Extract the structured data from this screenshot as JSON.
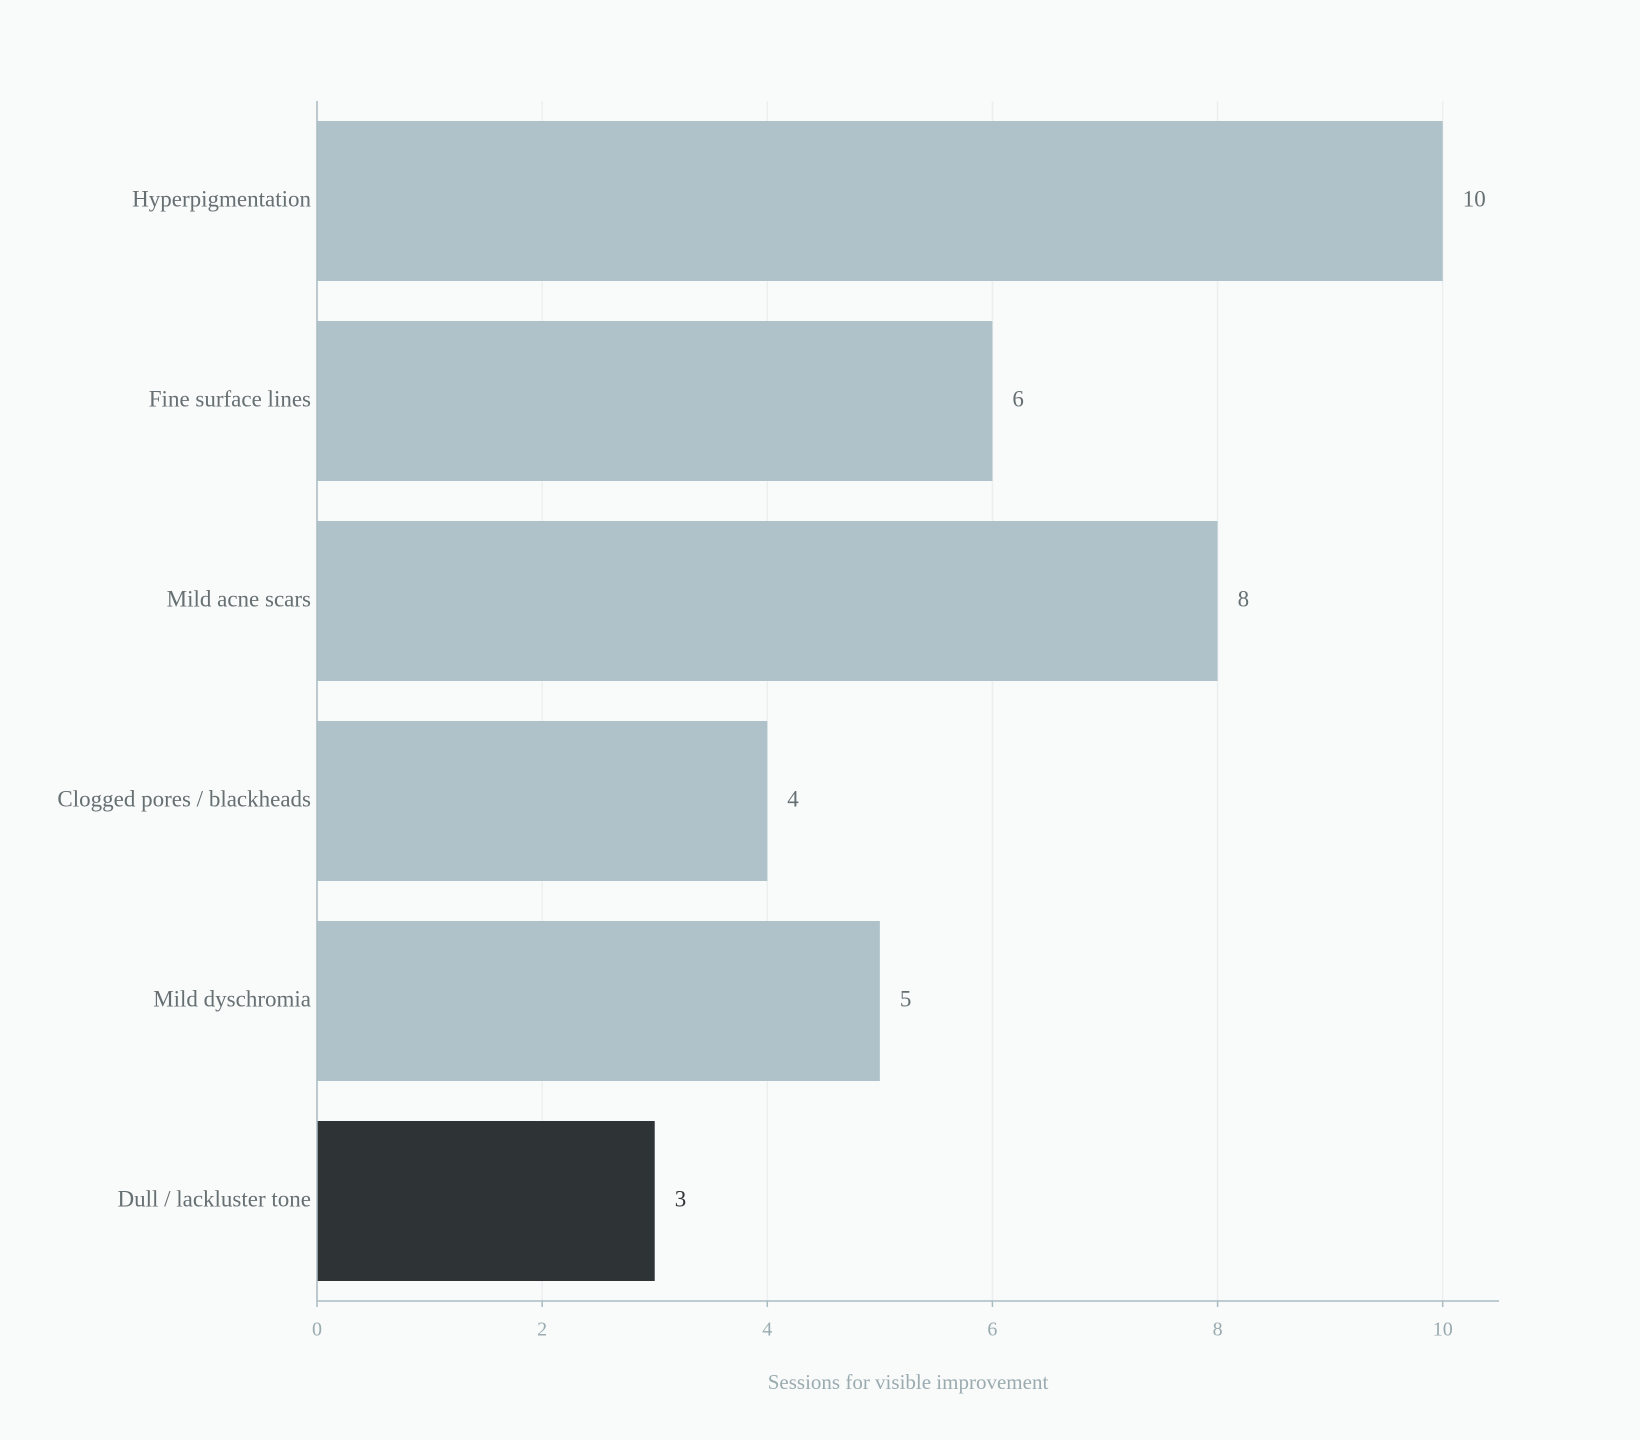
{
  "chart_data": {
    "type": "hbar",
    "x_label": "Sessions for visible improvement",
    "categories": [
      "Hyperpigmentation",
      "Fine surface lines",
      "Mild acne scars",
      "Clogged pores / blackheads",
      "Mild dyschromia",
      "Dull / lackluster tone"
    ],
    "values": [
      10,
      6,
      8,
      4,
      5,
      3
    ],
    "colors": [
      "#afc2c9",
      "#afc2c9",
      "#afc2c9",
      "#afc2c9",
      "#afc2c9",
      "#2e3436"
    ],
    "xlim": [
      0,
      10.5
    ],
    "xticks": [
      0,
      2,
      4,
      6,
      8,
      10
    ],
    "grid": true
  }
}
